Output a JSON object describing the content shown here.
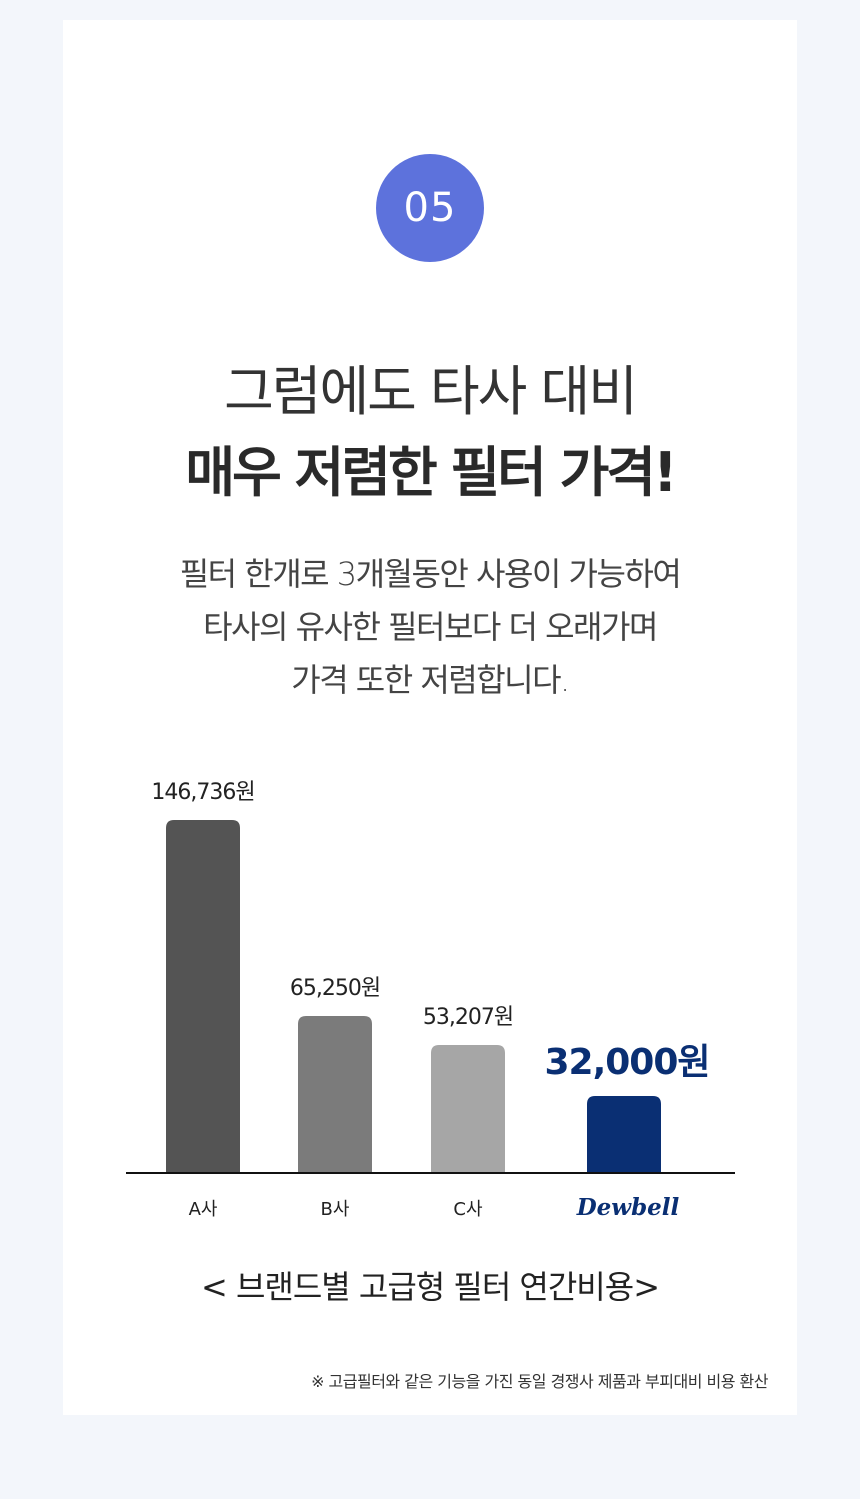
{
  "badge": "05",
  "headline": {
    "line1": "그럼에도 타사 대비",
    "line2": "매우 저렴한 필터 가격!"
  },
  "description": [
    "필터 한개로 3개월동안 사용이 가능하여",
    "타사의 유사한 필터보다 더 오래가며",
    "가격 또한 저렴합니다."
  ],
  "chart_data": {
    "type": "bar",
    "categories": [
      "A사",
      "B사",
      "C사",
      "Dewbell"
    ],
    "values": [
      146736,
      65250,
      53207,
      32000
    ],
    "value_labels": [
      "146,736원",
      "65,250원",
      "53,207원",
      "32,000원"
    ],
    "colors": [
      "#545454",
      "#7b7b7b",
      "#a6a6a6",
      "#0a2f73"
    ],
    "highlight_index": 3,
    "title": "< 브랜드별 고급형 필터 연간비용>",
    "xlabel": "",
    "ylabel": "",
    "grid": false
  },
  "footnote": "※ 고급필터와 같은 기능을 가진 동일 경쟁사 제품과 부피대비 비용 환산"
}
